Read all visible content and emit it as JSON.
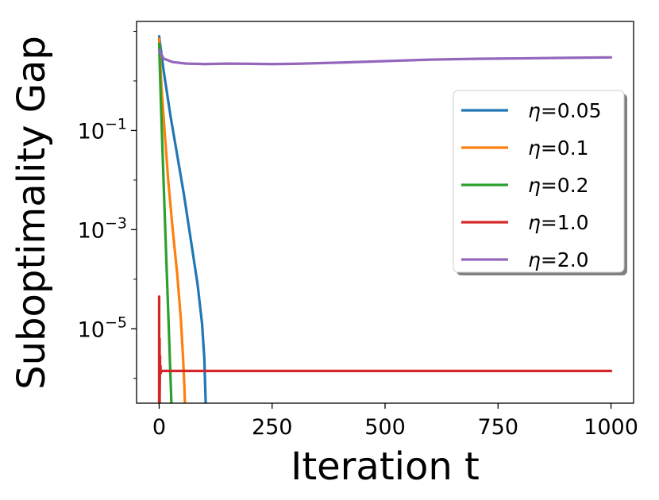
{
  "chart_data": {
    "type": "line",
    "xlabel": "Iteration t",
    "ylabel": "Suboptimality Gap",
    "xlim": [
      -50,
      1050
    ],
    "ylim_log10": [
      -6.5,
      1.2
    ],
    "y_scale": "log",
    "grid": false,
    "legend_position": "upper-right",
    "x_ticks": [
      0,
      250,
      500,
      750,
      1000
    ],
    "x_tick_labels": [
      "0",
      "250",
      "500",
      "750",
      "1000"
    ],
    "y_ticks_log10": [
      -1,
      -3,
      -5
    ],
    "y_tick_labels": [
      {
        "base": "10",
        "exp": "−1"
      },
      {
        "base": "10",
        "exp": "−3"
      },
      {
        "base": "10",
        "exp": "−5"
      }
    ],
    "series": [
      {
        "name": "η=0.05",
        "color": "#1f77b4",
        "x": [
          0,
          10,
          25,
          40,
          55,
          70,
          85,
          95,
          100,
          102,
          103
        ],
        "log10_y": [
          0.9,
          0.2,
          -0.7,
          -1.5,
          -2.3,
          -3.2,
          -4.1,
          -4.9,
          -5.6,
          -6.2,
          -6.5
        ]
      },
      {
        "name": "η=0.1",
        "color": "#ff7f0e",
        "x": [
          0,
          5,
          12,
          20,
          30,
          40,
          48,
          53,
          56,
          57
        ],
        "log10_y": [
          0.85,
          -0.1,
          -1.0,
          -2.0,
          -3.0,
          -3.9,
          -4.8,
          -5.6,
          -6.2,
          -6.5
        ]
      },
      {
        "name": "η=0.2",
        "color": "#2ca02c",
        "x": [
          0,
          3,
          7,
          12,
          17,
          21,
          24,
          26,
          27
        ],
        "log10_y": [
          0.75,
          -0.2,
          -1.3,
          -2.6,
          -3.9,
          -4.9,
          -5.7,
          -6.2,
          -6.5
        ]
      },
      {
        "name": "η=1.0",
        "color": "#d62728",
        "x": [
          0,
          0,
          0,
          1,
          1,
          2,
          2,
          3,
          3,
          5,
          1000
        ],
        "log10_y": [
          -6.5,
          -4.35,
          -6.5,
          -5.2,
          -6.5,
          -5.55,
          -5.85,
          -5.75,
          -5.9,
          -5.85,
          -5.85
        ]
      },
      {
        "name": "η=2.0",
        "color": "#9467bd",
        "x": [
          0,
          10,
          30,
          60,
          100,
          150,
          200,
          250,
          300,
          400,
          500,
          600,
          700,
          800,
          900,
          1000
        ],
        "log10_y": [
          0.62,
          0.45,
          0.38,
          0.35,
          0.34,
          0.35,
          0.345,
          0.34,
          0.345,
          0.37,
          0.4,
          0.43,
          0.445,
          0.455,
          0.465,
          0.475
        ]
      }
    ]
  }
}
